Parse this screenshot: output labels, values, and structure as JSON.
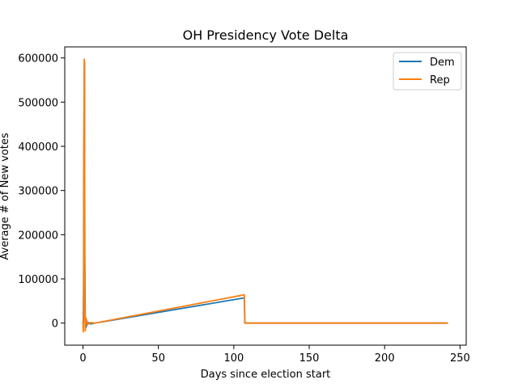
{
  "chart_data": {
    "type": "line",
    "title": "OH Presidency Vote Delta",
    "xlabel": "Days since election start",
    "ylabel": "Average # of New votes",
    "xlim": [
      -12.1,
      254.1
    ],
    "ylim": [
      -50000,
      625000
    ],
    "xticks": [
      0,
      50,
      100,
      150,
      200,
      250
    ],
    "yticks": [
      0,
      100000,
      200000,
      300000,
      400000,
      500000,
      600000
    ],
    "grid": false,
    "legend_position": "top-right",
    "series": [
      {
        "name": "Dem",
        "color": "#1f77b4",
        "x": [
          0,
          0.2,
          0.4,
          0.6,
          0.8,
          1.0,
          1.2,
          1.5,
          2,
          3,
          5,
          8,
          107,
          107.3,
          108,
          150,
          200,
          242
        ],
        "y": [
          0,
          10000,
          100000,
          420000,
          560000,
          590000,
          150000,
          10000,
          -10000,
          2000,
          -2000,
          0,
          57000,
          0,
          0,
          0,
          0,
          0
        ]
      },
      {
        "name": "Rep",
        "color": "#ff7f0e",
        "x": [
          0,
          0.2,
          0.4,
          0.6,
          0.8,
          1.0,
          1.2,
          1.5,
          2,
          3,
          5,
          8,
          107,
          107.3,
          108,
          150,
          200,
          242
        ],
        "y": [
          0,
          -20000,
          15000,
          400000,
          597000,
          590000,
          50000,
          -18000,
          12000,
          -3000,
          1000,
          0,
          64000,
          0,
          0,
          0,
          0,
          0
        ]
      }
    ]
  }
}
